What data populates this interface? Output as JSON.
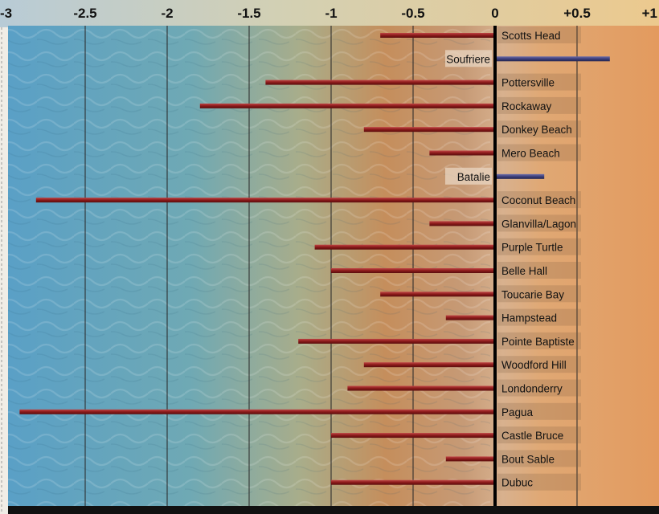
{
  "chart_data": {
    "type": "bar",
    "orientation": "horizontal",
    "xlim": [
      -3,
      1
    ],
    "x_ticks": [
      "-3",
      "-2.5",
      "-2",
      "-1.5",
      "-1",
      "-0.5",
      "0",
      "+0.5",
      "+1"
    ],
    "grid": true,
    "categories": [
      "Scotts Head",
      "Soufriere",
      "Pottersville",
      "Rockaway",
      "Donkey Beach",
      "Mero Beach",
      "Batalie",
      "Coconut Beach",
      "Glanvilla/Lagon",
      "Purple Turtle",
      "Belle Hall",
      "Toucarie Bay",
      "Hampstead",
      "Pointe Baptiste",
      "Woodford Hill",
      "Londonderry",
      "Pagua",
      "Castle Bruce",
      "Bout Sable",
      "Dubuc"
    ],
    "values": [
      -0.7,
      0.7,
      -1.4,
      -1.8,
      -0.8,
      -0.4,
      0.3,
      -2.8,
      -0.4,
      -1.1,
      -1.0,
      -0.7,
      -0.3,
      -1.2,
      -0.8,
      -0.9,
      -2.9,
      -1.0,
      -0.3,
      -1.0
    ]
  },
  "colors": {
    "negative_bar": "#8b1a1a",
    "positive_bar": "#3d3f7a",
    "zero_line": "#000000",
    "grid": "#2a2a2a",
    "sea": "#5b9cc0",
    "sand": "#d9924a"
  }
}
